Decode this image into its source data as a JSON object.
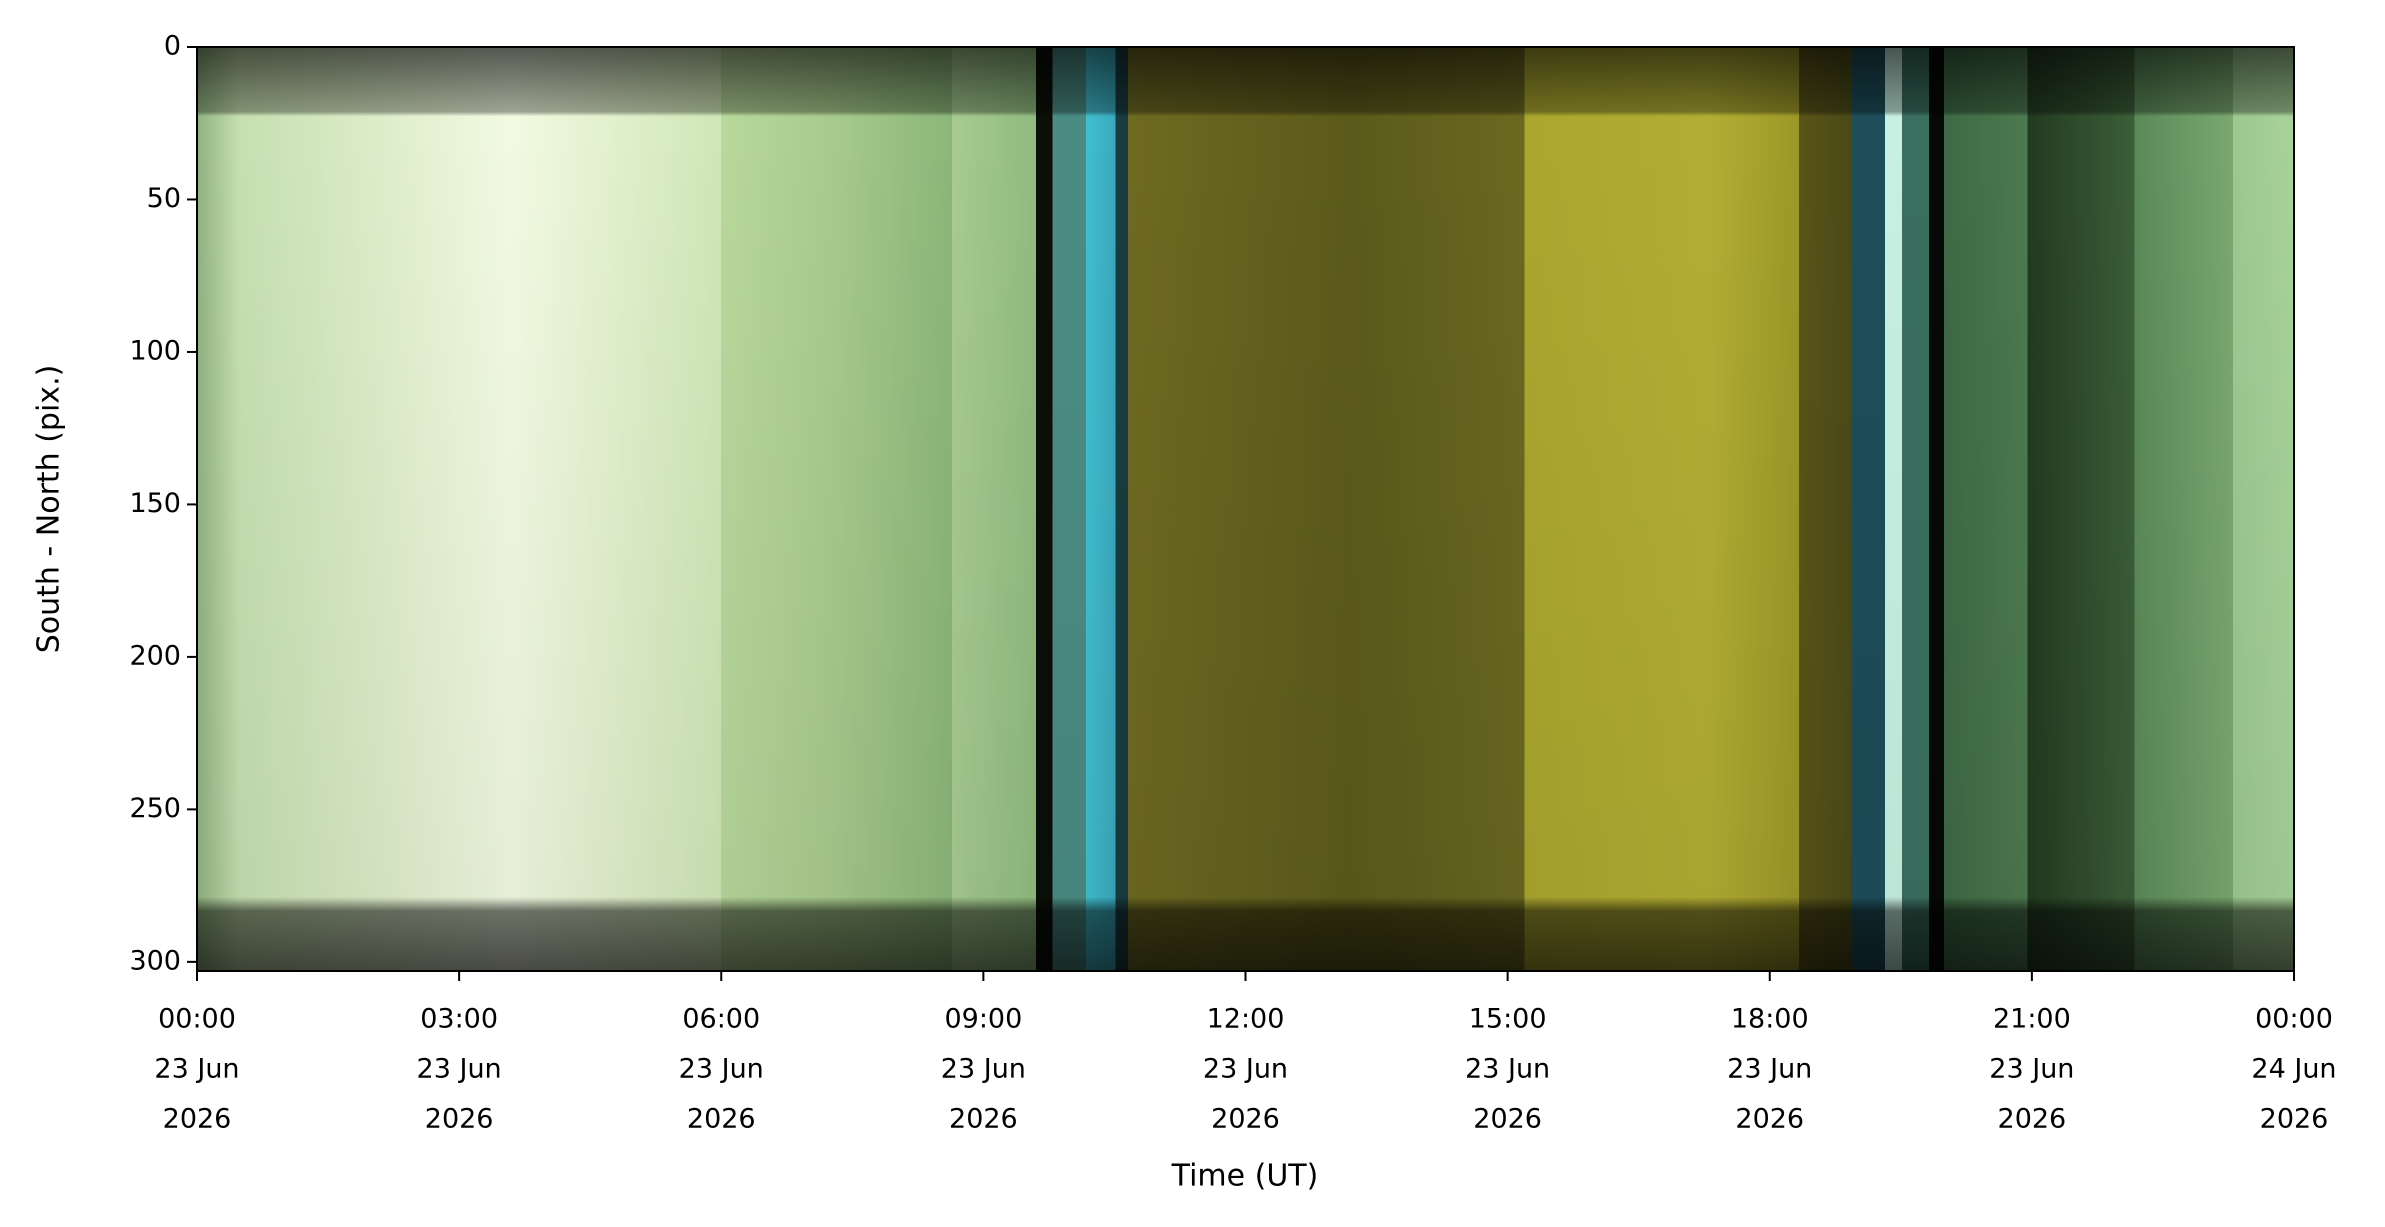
{
  "chart_data": {
    "type": "image",
    "xlabel": "Time (UT)",
    "ylabel": "South - North (pix.)",
    "xlim": [
      0,
      24
    ],
    "xticks": [
      {
        "value": 0,
        "label": [
          "00:00",
          "23 Jun",
          "2026"
        ]
      },
      {
        "value": 3,
        "label": [
          "03:00",
          "23 Jun",
          "2026"
        ]
      },
      {
        "value": 6,
        "label": [
          "06:00",
          "23 Jun",
          "2026"
        ]
      },
      {
        "value": 9,
        "label": [
          "09:00",
          "23 Jun",
          "2026"
        ]
      },
      {
        "value": 12,
        "label": [
          "12:00",
          "23 Jun",
          "2026"
        ]
      },
      {
        "value": 15,
        "label": [
          "15:00",
          "23 Jun",
          "2026"
        ]
      },
      {
        "value": 18,
        "label": [
          "18:00",
          "23 Jun",
          "2026"
        ]
      },
      {
        "value": 21,
        "label": [
          "21:00",
          "23 Jun",
          "2026"
        ]
      },
      {
        "value": 24,
        "label": [
          "00:00",
          "24 Jun",
          "2026"
        ]
      }
    ],
    "ylim": [
      303,
      0
    ],
    "yticks": [
      0,
      50,
      100,
      150,
      200,
      250,
      300
    ]
  }
}
